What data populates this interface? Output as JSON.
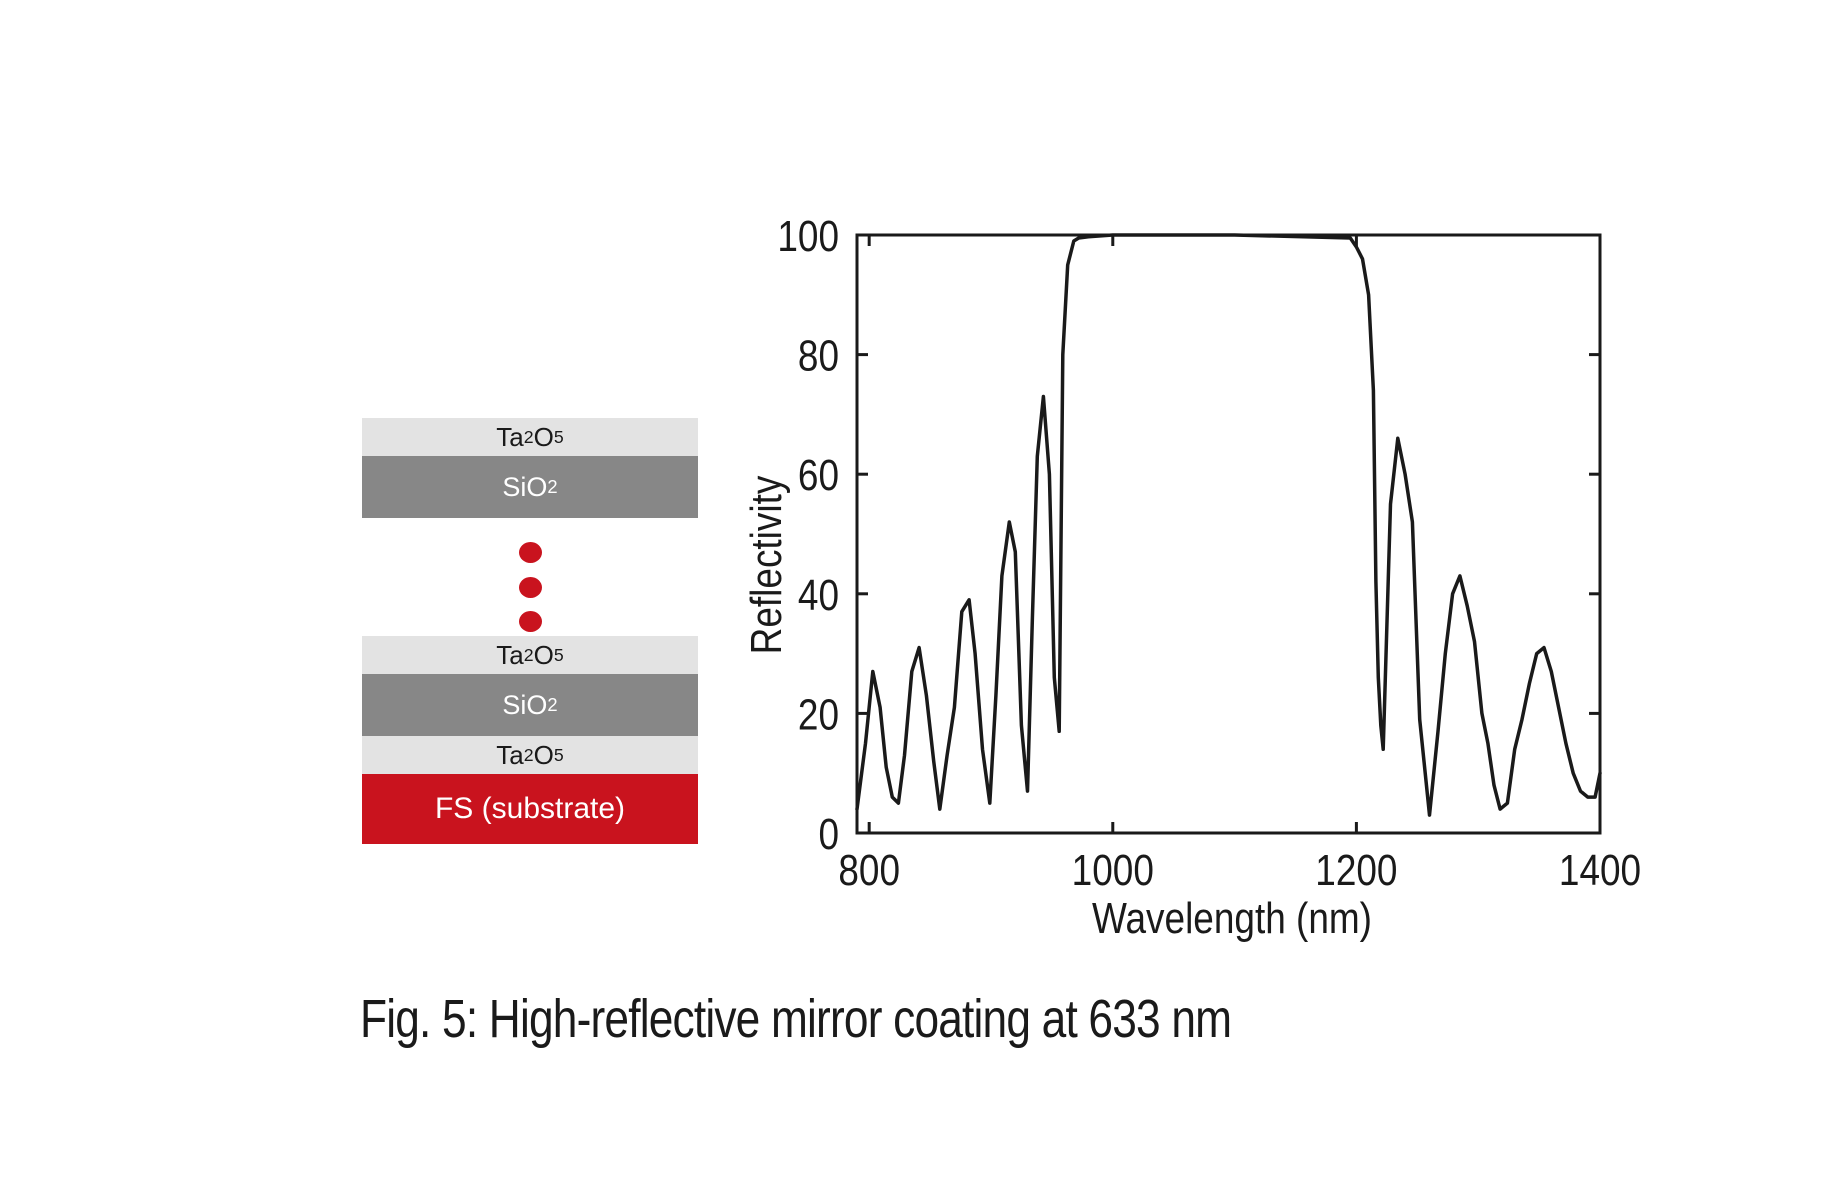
{
  "diagram": {
    "layers_top": [
      {
        "base": "Ta",
        "sub1": "2",
        "mid": "O",
        "sub2": "5"
      },
      {
        "base": "SiO",
        "sub1": "2"
      }
    ],
    "layers_bottom": [
      {
        "base": "Ta",
        "sub1": "2",
        "mid": "O",
        "sub2": "5"
      },
      {
        "base": "SiO",
        "sub1": "2"
      },
      {
        "base": "Ta",
        "sub1": "2",
        "mid": "O",
        "sub2": "5"
      }
    ],
    "substrate_label": "FS (substrate)",
    "colors": {
      "light_layer": "#e3e3e3",
      "dark_layer": "#878787",
      "substrate": "#c9131e",
      "dots": "#c9131e"
    }
  },
  "caption": "Fig. 5: High-reflective mirror coating at 633 nm",
  "chart_data": {
    "type": "line",
    "title": "",
    "xlabel": "Wavelength (nm)",
    "ylabel": "Reflectivity",
    "xlim": [
      790,
      1400
    ],
    "ylim": [
      0,
      100
    ],
    "xticks": [
      800,
      1000,
      1200,
      1400
    ],
    "yticks": [
      0,
      20,
      40,
      60,
      80,
      100
    ],
    "grid": false,
    "legend": "none",
    "series": [
      {
        "name": "Reflectivity",
        "color": "#1a1a1a",
        "x": [
          790,
          797,
          803,
          809,
          814,
          819,
          824,
          829,
          835,
          841,
          847,
          853,
          858,
          864,
          870,
          876,
          882,
          887,
          893,
          899,
          904,
          909,
          915,
          920,
          925,
          930,
          934,
          938,
          943,
          948,
          952,
          956,
          959,
          963,
          968,
          972,
          980,
          1000,
          1100,
          1195,
          1200,
          1205,
          1210,
          1214,
          1216,
          1218,
          1220,
          1222,
          1228,
          1234,
          1240,
          1246,
          1252,
          1256,
          1260,
          1267,
          1273,
          1279,
          1285,
          1291,
          1297,
          1303,
          1308,
          1313,
          1318,
          1324,
          1330,
          1336,
          1342,
          1348,
          1354,
          1360,
          1366,
          1372,
          1378,
          1384,
          1390,
          1396,
          1400
        ],
        "y": [
          4,
          15,
          27,
          21,
          11,
          6,
          5,
          13,
          27,
          31,
          23,
          12,
          4,
          13,
          21,
          37,
          39,
          30,
          14,
          5,
          23,
          43,
          52,
          47,
          18,
          7,
          36,
          63,
          73,
          60,
          26,
          17,
          80,
          95,
          99,
          99.5,
          99.7,
          100,
          100,
          99.5,
          98,
          96,
          90,
          74,
          42,
          26,
          18,
          14,
          55,
          66,
          60,
          52,
          19,
          11,
          3,
          17,
          30,
          40,
          43,
          38,
          32,
          20,
          15,
          8,
          4,
          5,
          14,
          19,
          25,
          30,
          31,
          27,
          21,
          15,
          10,
          7,
          6,
          6,
          10
        ]
      }
    ]
  }
}
